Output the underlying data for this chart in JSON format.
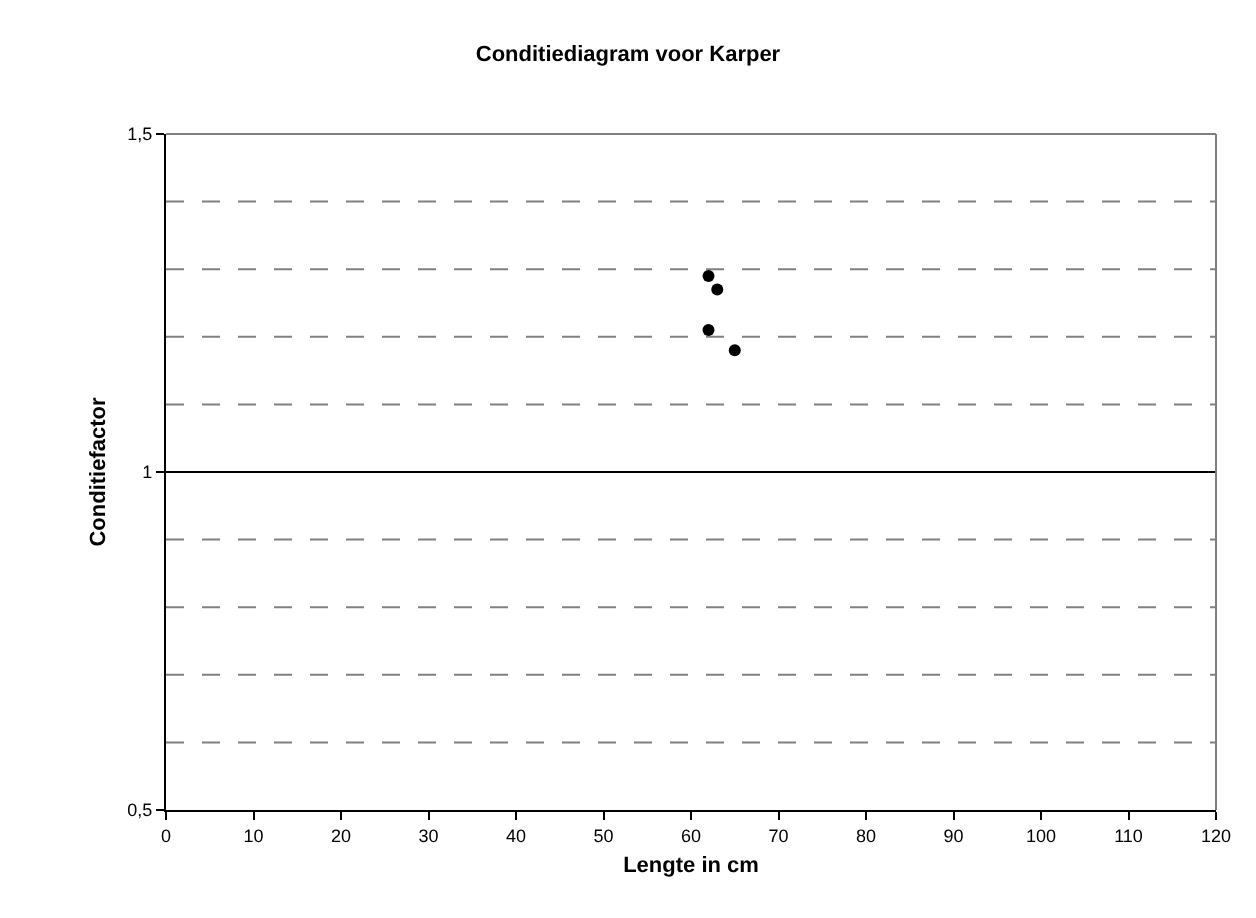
{
  "chart_data": {
    "type": "scatter",
    "title": "Conditiediagram voor Karper",
    "xlabel": "Lengte in cm",
    "ylabel": "Conditiefactor",
    "x": [
      62,
      63,
      62,
      65
    ],
    "series": [
      {
        "color": "#000000",
        "values": [
          1.29,
          1.27,
          1.21,
          1.18
        ]
      }
    ],
    "marker": "circle",
    "grid": false,
    "xlim": [
      0,
      120
    ],
    "xticks": [
      0,
      10,
      20,
      30,
      40,
      50,
      60,
      70,
      80,
      90,
      100,
      110,
      120
    ],
    "ylim": [
      0.5,
      1.5
    ],
    "yticks": [
      {
        "value": 0.5,
        "label": "0,5"
      },
      {
        "value": 1,
        "label": "1"
      },
      {
        "value": 1.5,
        "label": "1,5"
      }
    ],
    "ref_lines": [
      {
        "axis": "y",
        "value": 0.6,
        "line_style": "dashed",
        "color": "#808080"
      },
      {
        "axis": "y",
        "value": 0.7,
        "line_style": "dashed",
        "color": "#808080"
      },
      {
        "axis": "y",
        "value": 0.8,
        "line_style": "dashed",
        "color": "#808080"
      },
      {
        "axis": "y",
        "value": 0.9,
        "line_style": "dashed",
        "color": "#808080"
      },
      {
        "axis": "y",
        "value": 1,
        "line_style": "solid",
        "color": "#000000"
      },
      {
        "axis": "y",
        "value": 1.1,
        "line_style": "dashed",
        "color": "#808080"
      },
      {
        "axis": "y",
        "value": 1.2,
        "line_style": "dashed",
        "color": "#808080"
      },
      {
        "axis": "y",
        "value": 1.3,
        "line_style": "dashed",
        "color": "#808080"
      },
      {
        "axis": "y",
        "value": 1.4,
        "line_style": "dashed",
        "color": "#808080"
      }
    ]
  }
}
